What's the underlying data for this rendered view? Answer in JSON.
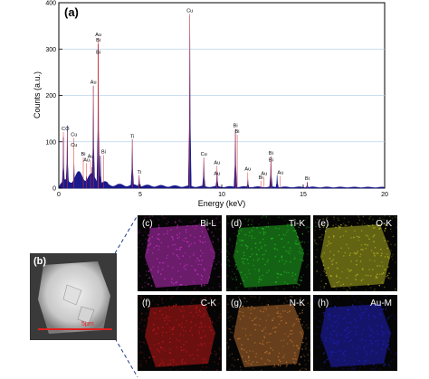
{
  "chart_data": {
    "type": "line",
    "panel_label": "(a)",
    "xlabel": "Energy (keV)",
    "ylabel": "Counts (a.u.)",
    "xlim": [
      0,
      20
    ],
    "ylim": [
      0,
      400
    ],
    "xticks": [
      0,
      5,
      10,
      15,
      20
    ],
    "yticks": [
      0,
      100,
      200,
      300,
      400
    ],
    "grid": true,
    "series_color": "#1a1a8c",
    "peak_marker_color": "#e03030",
    "peaks": [
      {
        "x": 0.28,
        "y": 110
      },
      {
        "x": 0.52,
        "y": 135
      },
      {
        "x": 0.93,
        "y": 55
      },
      {
        "x": 1.2,
        "y": 28
      },
      {
        "x": 1.7,
        "y": 25
      },
      {
        "x": 2.05,
        "y": 45
      },
      {
        "x": 2.12,
        "y": 220
      },
      {
        "x": 2.42,
        "y": 310
      },
      {
        "x": 2.55,
        "y": 70
      },
      {
        "x": 4.51,
        "y": 105
      },
      {
        "x": 4.93,
        "y": 28
      },
      {
        "x": 8.04,
        "y": 372
      },
      {
        "x": 8.9,
        "y": 65
      },
      {
        "x": 9.71,
        "y": 40
      },
      {
        "x": 10.84,
        "y": 125
      },
      {
        "x": 11.6,
        "y": 20
      },
      {
        "x": 13.02,
        "y": 68
      },
      {
        "x": 13.4,
        "y": 28
      },
      {
        "x": 15.25,
        "y": 12
      }
    ],
    "annotations": [
      {
        "text": "C",
        "x": 0.28,
        "y": 125
      },
      {
        "text": "O",
        "x": 0.52,
        "y": 125
      },
      {
        "text": "Cu",
        "x": 0.93,
        "y": 112
      },
      {
        "text": "Cu",
        "x": 0.93,
        "y": 90
      },
      {
        "text": "Bi",
        "x": 1.5,
        "y": 70
      },
      {
        "text": "Au",
        "x": 1.95,
        "y": 65
      },
      {
        "text": "Au",
        "x": 1.7,
        "y": 58
      },
      {
        "text": "Au",
        "x": 2.12,
        "y": 225
      },
      {
        "text": "Au",
        "x": 2.42,
        "y": 328
      },
      {
        "text": "Bi",
        "x": 2.42,
        "y": 316
      },
      {
        "text": "Bi",
        "x": 2.42,
        "y": 290
      },
      {
        "text": "Bi",
        "x": 2.75,
        "y": 75
      },
      {
        "text": "Ti",
        "x": 4.51,
        "y": 108
      },
      {
        "text": "Ti",
        "x": 4.93,
        "y": 31
      },
      {
        "text": "Cu",
        "x": 8.04,
        "y": 380
      },
      {
        "text": "Cu",
        "x": 8.9,
        "y": 70
      },
      {
        "text": "Au",
        "x": 9.71,
        "y": 52
      },
      {
        "text": "Au",
        "x": 9.71,
        "y": 28
      },
      {
        "text": "Bi",
        "x": 10.84,
        "y": 132
      },
      {
        "text": "Bi",
        "x": 10.95,
        "y": 119
      },
      {
        "text": "Au",
        "x": 11.6,
        "y": 38
      },
      {
        "text": "Bi",
        "x": 13.02,
        "y": 72
      },
      {
        "text": "Bi",
        "x": 13.02,
        "y": 58
      },
      {
        "text": "Au",
        "x": 12.6,
        "y": 28
      },
      {
        "text": "Bi",
        "x": 12.4,
        "y": 20
      },
      {
        "text": "Au",
        "x": 13.6,
        "y": 30
      },
      {
        "text": "Bi",
        "x": 15.25,
        "y": 18
      }
    ]
  },
  "sem_image": {
    "label": "(b)",
    "scale_text": "5μm"
  },
  "maps": [
    {
      "label": "(c)",
      "element": "Bi-L",
      "color": "#c030c0"
    },
    {
      "label": "(d)",
      "element": "Ti-K",
      "color": "#20b020"
    },
    {
      "label": "(e)",
      "element": "O-K",
      "color": "#b0b020"
    },
    {
      "label": "(f)",
      "element": "C-K",
      "color": "#c01818"
    },
    {
      "label": "(g)",
      "element": "N-K",
      "color": "#b87030"
    },
    {
      "label": "(h)",
      "element": "Au-M",
      "color": "#2020c0"
    }
  ]
}
